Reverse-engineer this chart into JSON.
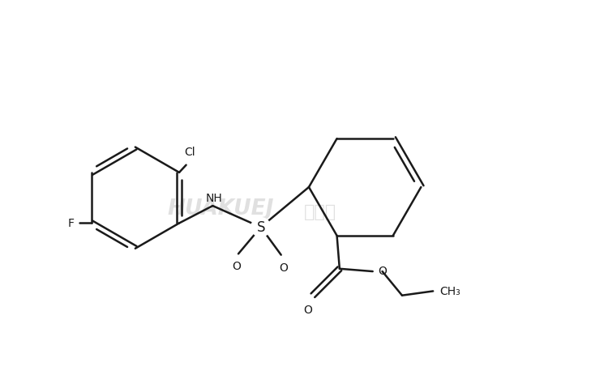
{
  "background_color": "#ffffff",
  "line_color": "#1a1a1a",
  "line_width": 1.8,
  "fig_width": 7.29,
  "fig_height": 4.64,
  "dpi": 100,
  "xlim": [
    0,
    10
  ],
  "ylim": [
    0,
    7
  ],
  "watermark1": "HUAKUEJ",
  "watermark2": "化学加",
  "watermark_color": "#cccccc"
}
